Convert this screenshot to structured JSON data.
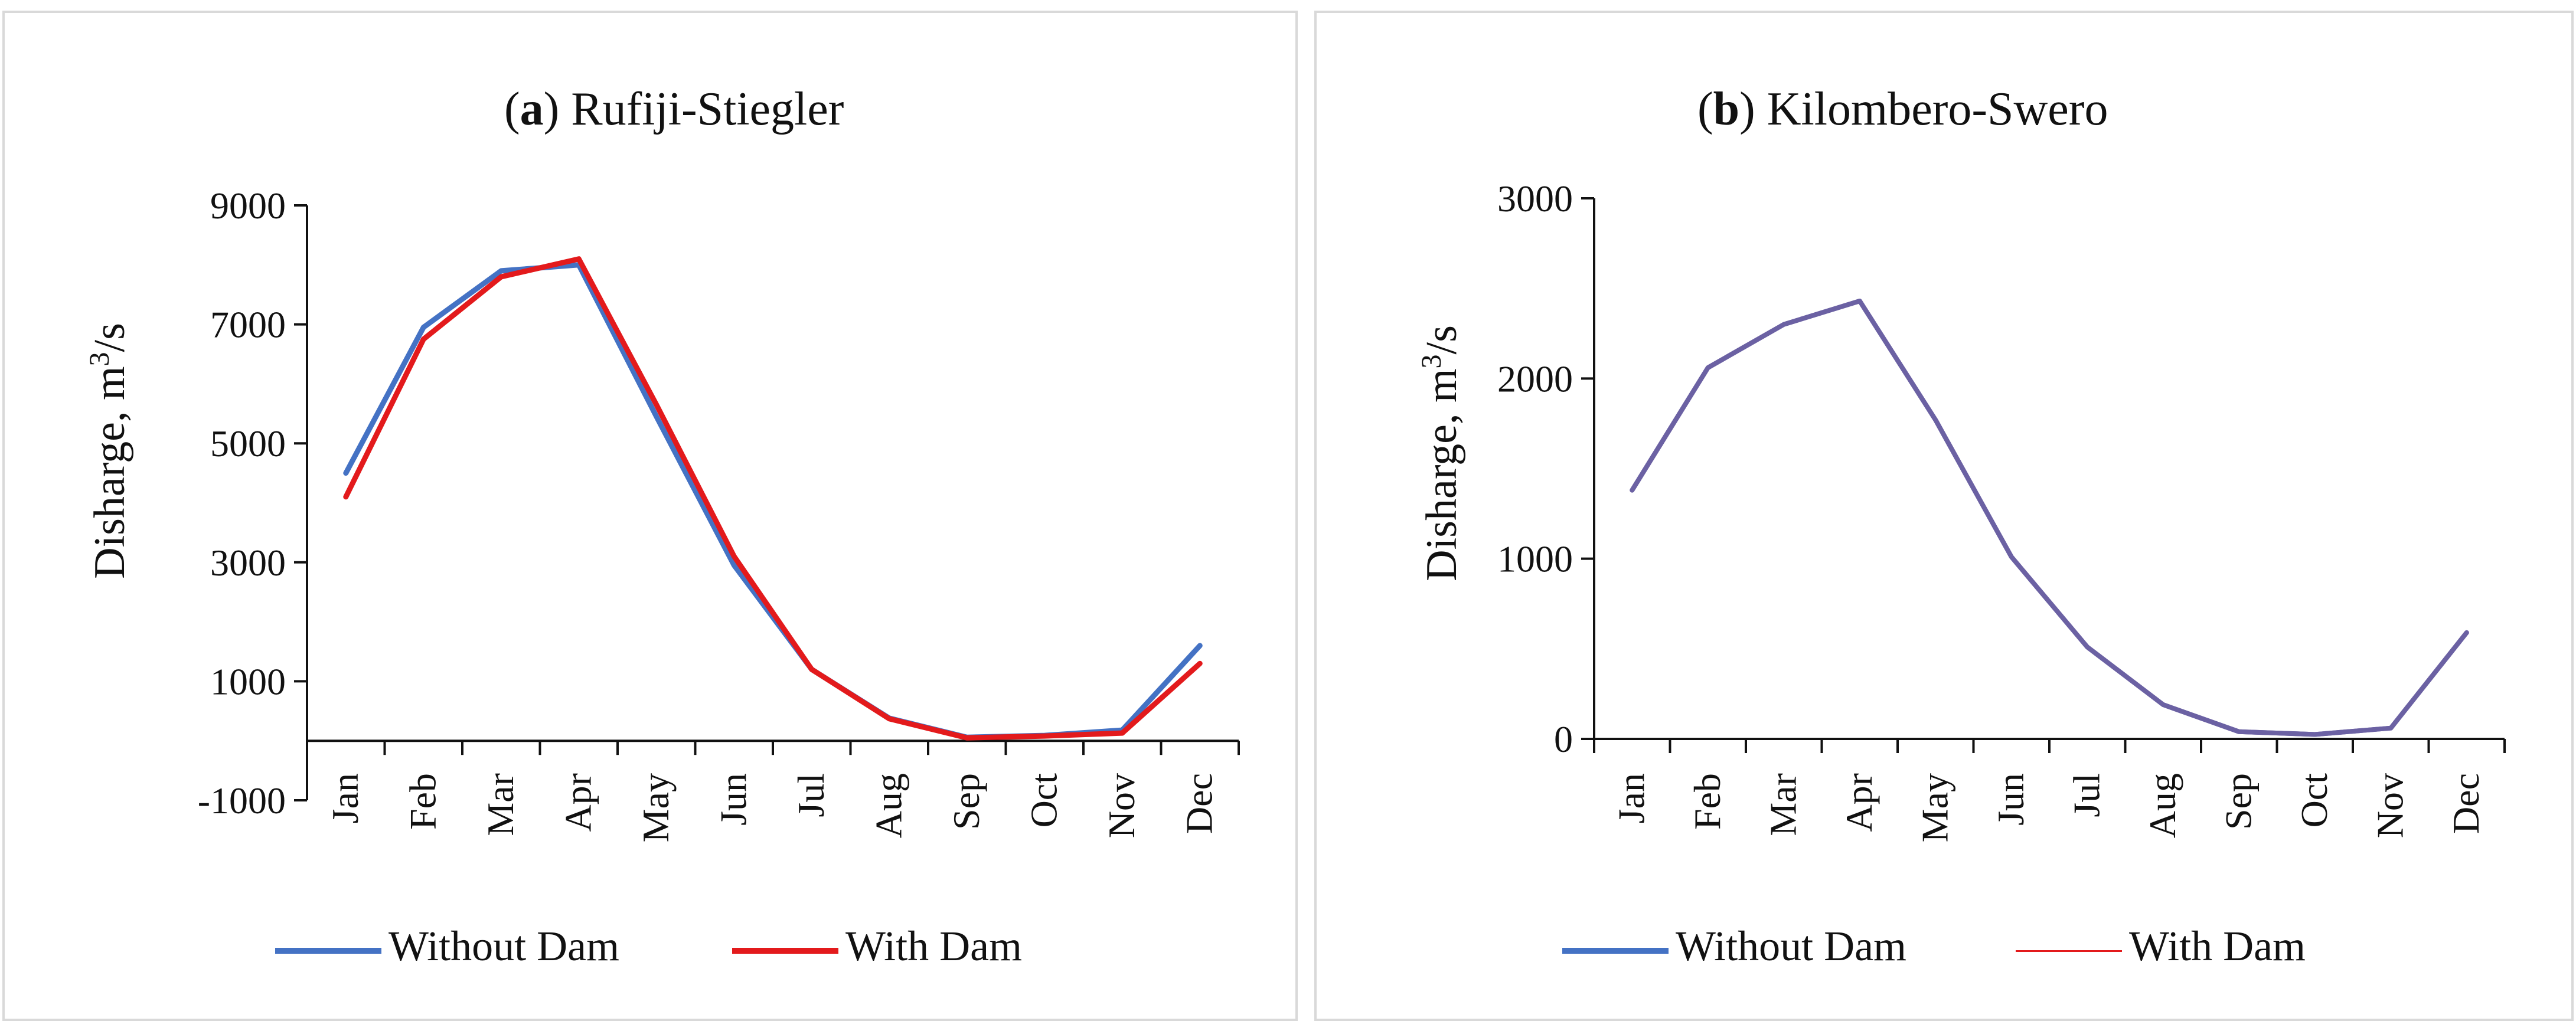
{
  "chart_data": [
    {
      "type": "line",
      "panel_tag": "a",
      "title": "Rufiji-Stiegler",
      "xlabel": "",
      "ylabel_main": "Disharge, m",
      "ylabel_sup": "3",
      "ylabel_tail": "/s",
      "categories": [
        "Jan",
        "Feb",
        "Mar",
        "Apr",
        "May",
        "Jun",
        "Jul",
        "Aug",
        "Sep",
        "Oct",
        "Nov",
        "Dec"
      ],
      "ylim": [
        -1000,
        9000
      ],
      "yticks": [
        -1000,
        1000,
        3000,
        5000,
        7000,
        9000
      ],
      "series": [
        {
          "name": "Without Dam",
          "color": "#4472c4",
          "values": [
            4500,
            6950,
            7900,
            8000,
            5450,
            2950,
            1200,
            380,
            60,
            90,
            180,
            1600
          ]
        },
        {
          "name": "With Dam",
          "color": "#e31a1c",
          "values": [
            4100,
            6750,
            7800,
            8100,
            5650,
            3100,
            1200,
            370,
            50,
            80,
            130,
            1300
          ]
        }
      ],
      "legend": [
        "Without Dam",
        "With Dam"
      ]
    },
    {
      "type": "line",
      "panel_tag": "b",
      "title": "Kilombero-Swero",
      "xlabel": "",
      "ylabel_main": "Disharge, m",
      "ylabel_sup": "3",
      "ylabel_tail": "/s",
      "categories": [
        "Jan",
        "Feb",
        "Mar",
        "Apr",
        "May",
        "Jun",
        "Jul",
        "Aug",
        "Sep",
        "Oct",
        "Nov",
        "Dec"
      ],
      "ylim": [
        0,
        3000
      ],
      "yticks": [
        0,
        1000,
        2000,
        3000
      ],
      "series": [
        {
          "name": "Without Dam",
          "color": "#4472c4",
          "values": [
            1380,
            2060,
            2300,
            2430,
            1770,
            1010,
            510,
            190,
            40,
            25,
            60,
            590
          ]
        },
        {
          "name": "With Dam",
          "color": "#e31a1c",
          "values": [
            1380,
            2060,
            2300,
            2430,
            1770,
            1010,
            510,
            190,
            40,
            25,
            60,
            590
          ]
        }
      ],
      "overlap_line_color": "#6b61a3",
      "legend": [
        "Without Dam",
        "With Dam"
      ]
    }
  ]
}
